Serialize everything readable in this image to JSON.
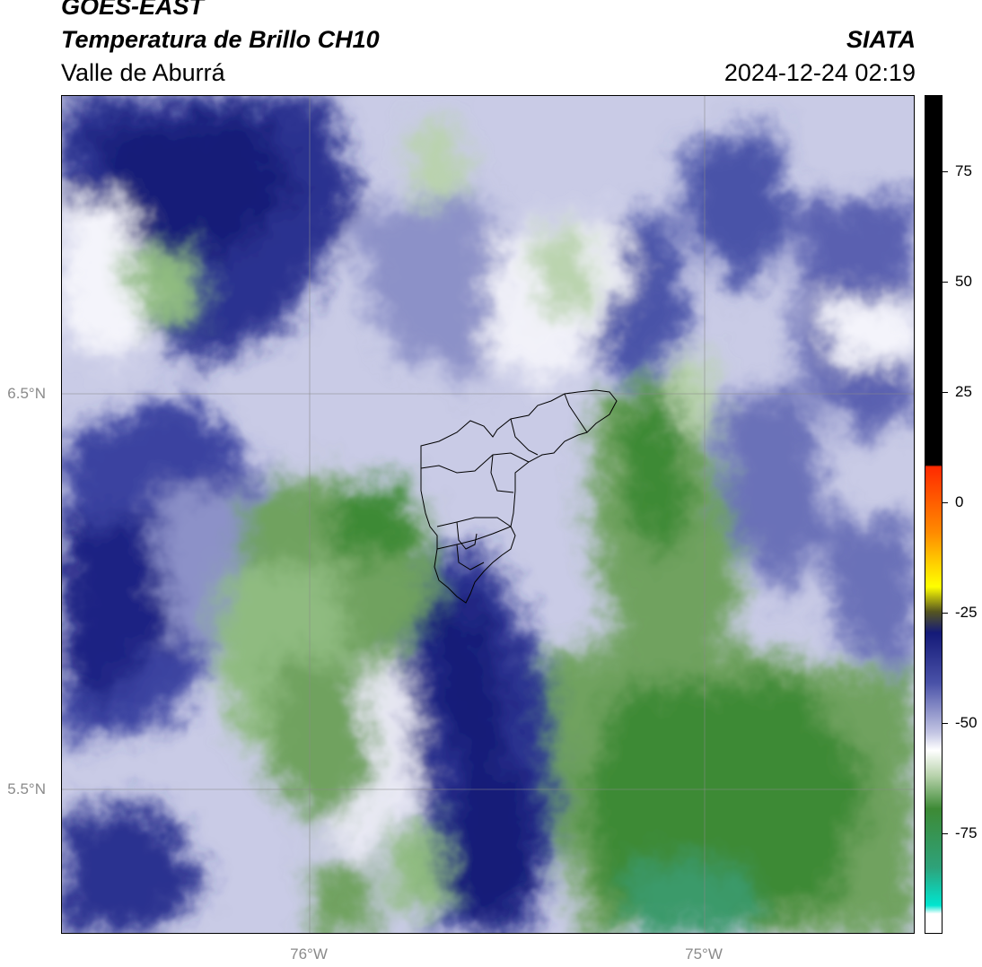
{
  "header": {
    "satellite": "GOES-EAST",
    "product": "Temperatura de Brillo CH10",
    "region": "Valle de Aburrá",
    "source": "SIATA",
    "timestamp": "2024-12-24 02:19"
  },
  "map": {
    "latitude_labels": [
      "6.5°N",
      "5.5°N"
    ],
    "longitude_labels": [
      "76°W",
      "75°W"
    ],
    "feature": "Valle de Aburrá municipal boundaries",
    "colors": {
      "dark_blue": "#141a78",
      "mid_blue": "#4a52a8",
      "light_blue": "#b8bcdf",
      "white": "#ffffff",
      "light_green": "#b9d3ad",
      "mid_green": "#6fa25f",
      "dark_green": "#3d8a35",
      "teal_green": "#3a9a6a"
    }
  },
  "colorbar": {
    "tick_labels": [
      "75",
      "50",
      "25",
      "0",
      "-25",
      "-50",
      "-75"
    ],
    "colors": [
      "#000000",
      "#ff2a00",
      "#ffd400",
      "#141a78",
      "#ffffff",
      "#3d8a35",
      "#00e5d0"
    ]
  }
}
